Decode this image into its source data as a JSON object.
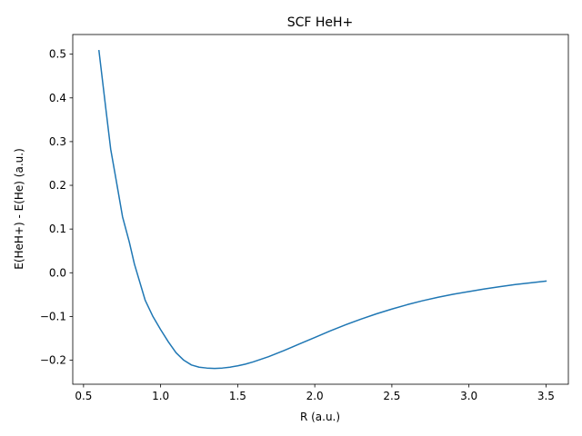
{
  "chart_data": {
    "type": "line",
    "title": "SCF HeH+",
    "xlabel": "R (a.u.)",
    "ylabel": "E(HeH+) - E(He) (a.u.)",
    "xlim": [
      0.43,
      3.645
    ],
    "ylim": [
      -0.255,
      0.545
    ],
    "xticks": [
      0.5,
      1.0,
      1.5,
      2.0,
      2.5,
      3.0,
      3.5
    ],
    "xtick_labels": [
      "0.5",
      "1.0",
      "1.5",
      "2.0",
      "2.5",
      "3.0",
      "3.5"
    ],
    "yticks": [
      -0.2,
      -0.1,
      0.0,
      0.1,
      0.2,
      0.3,
      0.4,
      0.5
    ],
    "ytick_labels": [
      "−0.2",
      "−0.1",
      "0.0",
      "0.1",
      "0.2",
      "0.3",
      "0.4",
      "0.5"
    ],
    "grid": false,
    "color": "#1f77b4",
    "series": [
      {
        "x": [
          0.6,
          0.643,
          0.676,
          0.72,
          0.753,
          0.797,
          0.83,
          0.9,
          0.95,
          1.0,
          1.05,
          1.1,
          1.15,
          1.2,
          1.25,
          1.3,
          1.35,
          1.4,
          1.45,
          1.5,
          1.55,
          1.6,
          1.65,
          1.7,
          1.75,
          1.8,
          1.9,
          2.0,
          2.1,
          2.2,
          2.3,
          2.4,
          2.5,
          2.6,
          2.7,
          2.8,
          2.9,
          3.0,
          3.1,
          3.2,
          3.3,
          3.4,
          3.5
        ],
        "y": [
          0.508,
          0.38,
          0.283,
          0.195,
          0.128,
          0.07,
          0.02,
          -0.063,
          -0.1,
          -0.13,
          -0.158,
          -0.183,
          -0.2,
          -0.211,
          -0.216,
          -0.218,
          -0.219,
          -0.218,
          -0.216,
          -0.213,
          -0.209,
          -0.204,
          -0.198,
          -0.192,
          -0.185,
          -0.178,
          -0.163,
          -0.148,
          -0.133,
          -0.119,
          -0.106,
          -0.094,
          -0.083,
          -0.073,
          -0.064,
          -0.056,
          -0.049,
          -0.043,
          -0.037,
          -0.032,
          -0.027,
          -0.023,
          -0.019
        ]
      }
    ]
  }
}
